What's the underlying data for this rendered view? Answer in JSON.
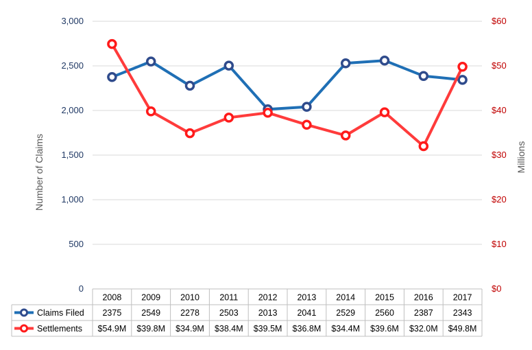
{
  "chart_data": {
    "type": "line",
    "categories": [
      "2008",
      "2009",
      "2010",
      "2011",
      "2012",
      "2013",
      "2014",
      "2015",
      "2016",
      "2017"
    ],
    "ylabel": "Number of Claims",
    "y2label": "Millions",
    "ylim": [
      0,
      3000
    ],
    "y2lim": [
      0,
      60
    ],
    "yticks": [
      "0",
      "500",
      "1,000",
      "1,500",
      "2,000",
      "2,500",
      "3,000"
    ],
    "y2ticks": [
      "$0",
      "$10",
      "$20",
      "$30",
      "$40",
      "$50",
      "$60"
    ],
    "grid": true,
    "legend": "data-table",
    "series": [
      {
        "name": "Claims Filed",
        "axis": "left",
        "color": "#1f6fb5",
        "values": [
          2375,
          2549,
          2278,
          2503,
          2013,
          2041,
          2529,
          2560,
          2387,
          2343
        ],
        "labels": [
          "2375",
          "2549",
          "2278",
          "2503",
          "2013",
          "2041",
          "2529",
          "2560",
          "2387",
          "2343"
        ]
      },
      {
        "name": "Settlements",
        "axis": "right",
        "color": "#ff3b3b",
        "values": [
          54.9,
          39.8,
          34.9,
          38.4,
          39.5,
          36.8,
          34.4,
          39.6,
          32.0,
          49.8
        ],
        "labels": [
          "$54.9M",
          "$39.8M",
          "$34.9M",
          "$38.4M",
          "$39.5M",
          "$36.8M",
          "$34.4M",
          "$39.6M",
          "$32.0M",
          "$49.8M"
        ]
      }
    ]
  }
}
